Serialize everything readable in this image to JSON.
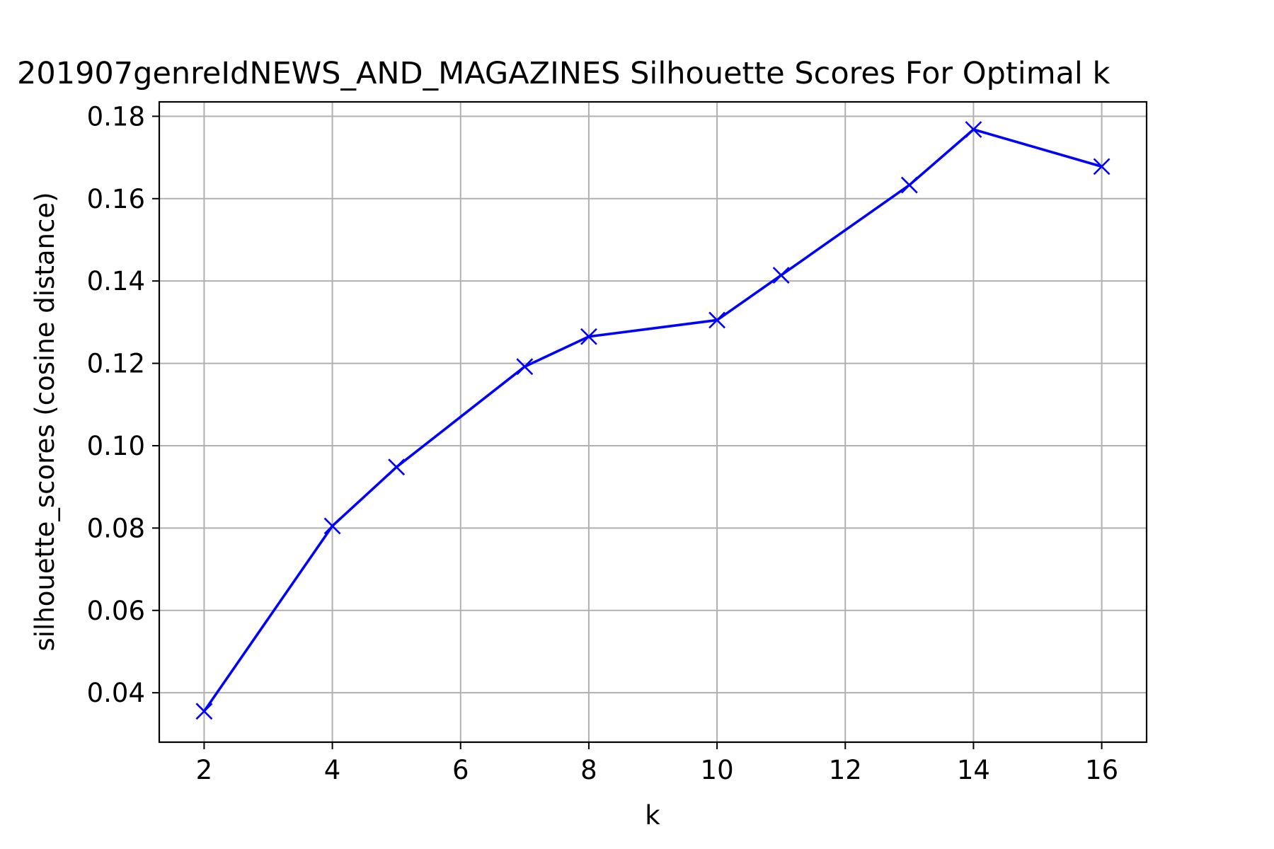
{
  "chart_data": {
    "type": "line",
    "title": "201907genreIdNEWS_AND_MAGAZINES Silhouette Scores For Optimal k",
    "xlabel": "k",
    "ylabel": "silhouette_scores (cosine distance)",
    "xlim": [
      1.3,
      16.7
    ],
    "ylim": [
      0.028,
      0.1835
    ],
    "xticks": [
      2,
      4,
      6,
      8,
      10,
      12,
      14,
      16
    ],
    "xtick_labels": [
      "2",
      "4",
      "6",
      "8",
      "10",
      "12",
      "14",
      "16"
    ],
    "yticks": [
      0.04,
      0.06,
      0.08,
      0.1,
      0.12,
      0.14,
      0.16,
      0.18
    ],
    "ytick_labels": [
      "0.04",
      "0.06",
      "0.08",
      "0.10",
      "0.12",
      "0.14",
      "0.16",
      "0.18"
    ],
    "grid": true,
    "legend": "none",
    "series": [
      {
        "color": "#0000ff",
        "marker": "x",
        "x": [
          2,
          4,
          5,
          7,
          8,
          10,
          11,
          13,
          14,
          16
        ],
        "y": [
          0.0355,
          0.0805,
          0.0948,
          0.1192,
          0.1265,
          0.1305,
          0.1414,
          0.1633,
          0.1768,
          0.1678
        ]
      }
    ]
  }
}
